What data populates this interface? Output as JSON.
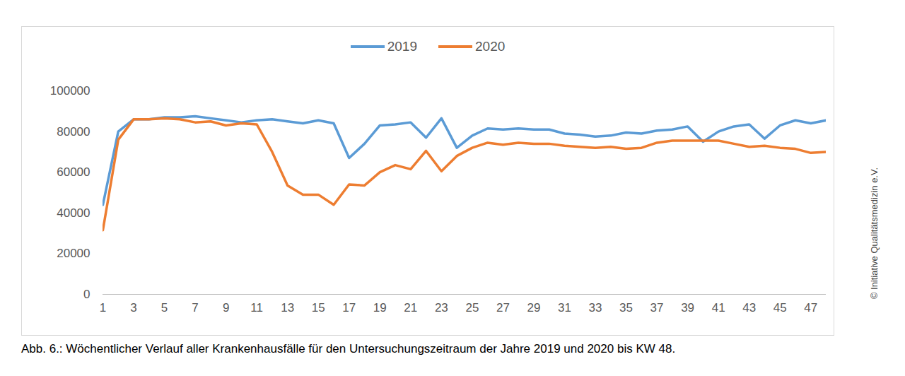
{
  "chart_data": {
    "type": "line",
    "caption": "Abb. 6.: Wöchentlicher Verlauf aller Krankenhausfälle für den Untersuchungszeitraum der Jahre 2019 und 2020 bis KW 48.",
    "copyright": "© Initiative Qualitätsmedizin e.V.",
    "x": [
      1,
      2,
      3,
      4,
      5,
      6,
      7,
      8,
      9,
      10,
      11,
      12,
      13,
      14,
      15,
      16,
      17,
      18,
      19,
      20,
      21,
      22,
      23,
      24,
      25,
      26,
      27,
      28,
      29,
      30,
      31,
      32,
      33,
      34,
      35,
      36,
      37,
      38,
      39,
      40,
      41,
      42,
      43,
      44,
      45,
      46,
      47,
      48
    ],
    "series": [
      {
        "name": "2019",
        "color": "#5b9bd5",
        "values": [
          44000,
          80000,
          86000,
          86000,
          87000,
          87000,
          87500,
          86500,
          85500,
          84500,
          85500,
          86000,
          85000,
          84000,
          85500,
          84000,
          67000,
          74000,
          83000,
          83500,
          84500,
          77000,
          86500,
          72000,
          78000,
          81500,
          81000,
          81500,
          81000,
          81000,
          79000,
          78500,
          77500,
          78000,
          79500,
          79000,
          80500,
          81000,
          82500,
          75000,
          80000,
          82500,
          83500,
          76500,
          83000,
          85500,
          84000,
          85500
        ]
      },
      {
        "name": "2020",
        "color": "#ed7d31",
        "values": [
          31500,
          76000,
          86000,
          86000,
          86500,
          86000,
          84500,
          85000,
          83000,
          84000,
          83500,
          70000,
          53500,
          49000,
          49000,
          44000,
          54000,
          53500,
          60000,
          63500,
          61500,
          70500,
          60500,
          68000,
          72000,
          74500,
          73500,
          74500,
          74000,
          74000,
          73000,
          72500,
          72000,
          72500,
          71500,
          72000,
          74500,
          75500,
          75500,
          75500,
          75500,
          74000,
          72500,
          73000,
          72000,
          71500,
          69500,
          70000
        ]
      }
    ],
    "xlim": [
      1,
      48
    ],
    "xticks": [
      1,
      3,
      5,
      7,
      9,
      11,
      13,
      15,
      17,
      19,
      21,
      23,
      25,
      27,
      29,
      31,
      33,
      35,
      37,
      39,
      41,
      43,
      45,
      47
    ],
    "ylim": [
      0,
      100000
    ],
    "yticks": [
      0,
      20000,
      40000,
      60000,
      80000,
      100000
    ],
    "grid": false,
    "legend": "top"
  }
}
